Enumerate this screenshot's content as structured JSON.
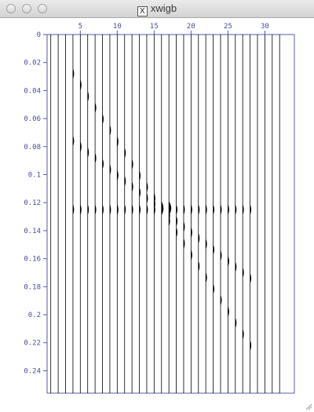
{
  "window": {
    "title": "xwigb",
    "app_icon": "x11-icon"
  },
  "chart_data": {
    "type": "wiggle",
    "x_tick_labels": [
      "5",
      "10",
      "15",
      "20",
      "25",
      "30"
    ],
    "x_ticks": [
      5,
      10,
      15,
      20,
      25,
      30
    ],
    "trace_count": 32,
    "xlim": [
      0.5,
      34
    ],
    "y_tick_labels": [
      "0",
      "0.02",
      "0.04",
      "0.06",
      "0.08",
      "0.1",
      "0.12",
      "0.14",
      "0.16",
      "0.18",
      "0.2",
      "0.22",
      "0.24"
    ],
    "y_ticks": [
      0,
      0.02,
      0.04,
      0.06,
      0.08,
      0.1,
      0.12,
      0.14,
      0.16,
      0.18,
      0.2,
      0.22,
      0.24
    ],
    "ylim": [
      0,
      0.256
    ],
    "events": [
      {
        "type": "flat",
        "traces": [
          4,
          28
        ],
        "time": 0.125
      },
      {
        "type": "dipping",
        "traces": [
          4,
          28
        ],
        "times": [
          0.028,
          0.222
        ]
      },
      {
        "type": "dipping",
        "traces": [
          4,
          28
        ],
        "times": [
          0.076,
          0.174
        ]
      }
    ],
    "colors": {
      "traces": "#000000",
      "frame": "#5a5aa8",
      "labels": "#4a4aa0"
    }
  }
}
